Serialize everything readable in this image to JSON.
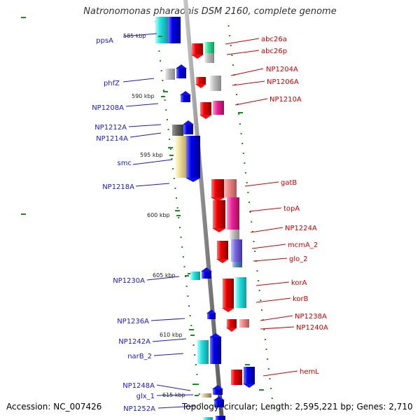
{
  "title": "Natronomonas pharaonis DSM 2160, complete genome",
  "footer": {
    "accession": "Accession: NC_007426",
    "summary": "Topology: circular; Length: 2,595,221 bp; Genes: 2,710"
  },
  "ticks": [
    "585 kbp",
    "590 kbp",
    "595 kbp",
    "600 kbp",
    "605 kbp",
    "610 kbp",
    "615 kbp"
  ],
  "left_genes": [
    "ppsA",
    "phfZ",
    "NP1208A",
    "NP1212A",
    "NP1214A",
    "smc",
    "NP1218A",
    "NP1230A",
    "NP1236A",
    "NP1242A",
    "narB_2",
    "NP1248A",
    "glx_1",
    "NP1252A"
  ],
  "right_genes": [
    "abc26a",
    "abc26p",
    "NP1204A",
    "NP1206A",
    "NP1210A",
    "gatB",
    "topA",
    "NP1224A",
    "mcmA_2",
    "glo_2",
    "korA",
    "korB",
    "NP1238A",
    "NP1240A",
    "hemL"
  ],
  "colors": {
    "forward": "#1010ee",
    "reverse": "#ee1010",
    "left_label": "#1a1acc",
    "right_label": "#cc0000",
    "backbone": "#999999",
    "dots": "#228822"
  }
}
